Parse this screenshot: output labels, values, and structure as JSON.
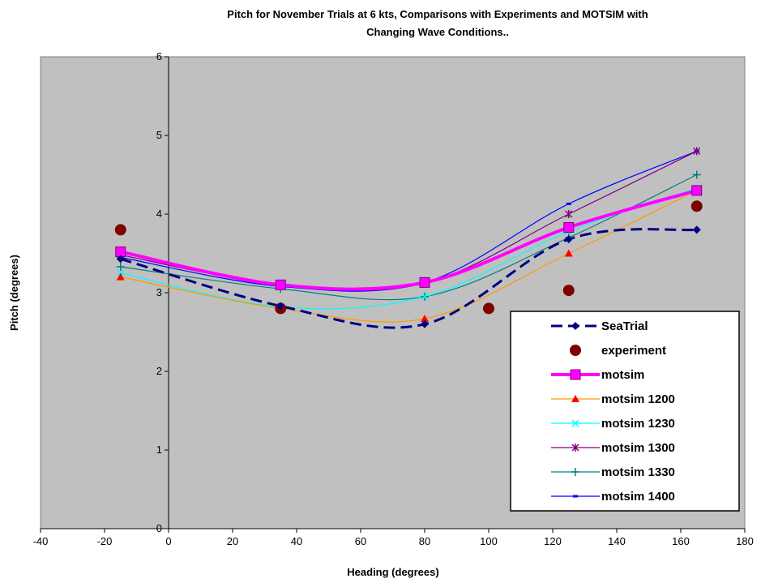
{
  "chart_data": {
    "type": "line",
    "title": [
      "Pitch for November Trials at 6 kts, Comparisons with Experiments and MOTSIM with",
      "Changing Wave Conditions.."
    ],
    "x_label": "Heading (degrees)",
    "y_label": "Pitch (degrees)",
    "xlim": [
      -40,
      180
    ],
    "xticks": [
      -40,
      -20,
      0,
      20,
      40,
      60,
      80,
      100,
      120,
      140,
      160,
      180
    ],
    "ylim": [
      0,
      6
    ],
    "yticks": [
      0,
      1,
      2,
      3,
      4,
      5,
      6
    ],
    "plot_background": "#c0c0c0",
    "smooth": true,
    "legend": "lower right",
    "series": [
      {
        "name": "SeaTrial",
        "color": "#000080",
        "line_width": 3,
        "dashed": true,
        "marker": "diamond",
        "marker_color": "#000080",
        "x": [
          -15,
          35,
          80,
          125,
          165
        ],
        "values": [
          3.43,
          2.83,
          2.6,
          3.68,
          3.8
        ]
      },
      {
        "name": "experiment",
        "color": "#800000",
        "line": false,
        "marker": "circle",
        "marker_color": "#800000",
        "x": [
          -15,
          35,
          100,
          125,
          165
        ],
        "values": [
          3.8,
          2.8,
          2.8,
          3.03,
          4.1
        ]
      },
      {
        "name": "motsim",
        "color": "#ff00ff",
        "line_width": 4,
        "marker": "square",
        "marker_color": "#ff00ff",
        "x": [
          -15,
          35,
          80,
          125,
          165
        ],
        "values": [
          3.52,
          3.1,
          3.13,
          3.83,
          4.3
        ]
      },
      {
        "name": "motsim 1200",
        "color": "#ff9900",
        "line_width": 1.2,
        "marker": "triangle",
        "marker_color": "#ff0000",
        "x": [
          -15,
          35,
          80,
          125,
          165
        ],
        "values": [
          3.2,
          2.8,
          2.67,
          3.5,
          4.3
        ]
      },
      {
        "name": "motsim 1230",
        "color": "#00ffff",
        "line_width": 1.2,
        "marker": "x",
        "marker_color": "#00ffff",
        "x": [
          -15,
          35,
          80,
          125,
          165
        ],
        "values": [
          3.25,
          2.82,
          2.95,
          3.78,
          4.33
        ]
      },
      {
        "name": "motsim 1300",
        "color": "#800080",
        "line_width": 1.2,
        "marker": "star",
        "marker_color": "#800080",
        "x": [
          -15,
          35,
          80,
          125,
          165
        ],
        "values": [
          3.48,
          3.1,
          3.12,
          4.0,
          4.8
        ]
      },
      {
        "name": "motsim 1330",
        "color": "#008080",
        "line_width": 1.2,
        "marker": "plus",
        "marker_color": "#008080",
        "x": [
          -15,
          35,
          80,
          125,
          165
        ],
        "values": [
          3.33,
          3.05,
          2.95,
          3.7,
          4.5
        ]
      },
      {
        "name": "motsim 1400",
        "color": "#0000ff",
        "line_width": 1.2,
        "marker": "dash",
        "marker_color": "#0000ff",
        "x": [
          -15,
          35,
          80,
          125,
          165
        ],
        "values": [
          3.45,
          3.08,
          3.13,
          4.13,
          4.8
        ]
      }
    ]
  }
}
